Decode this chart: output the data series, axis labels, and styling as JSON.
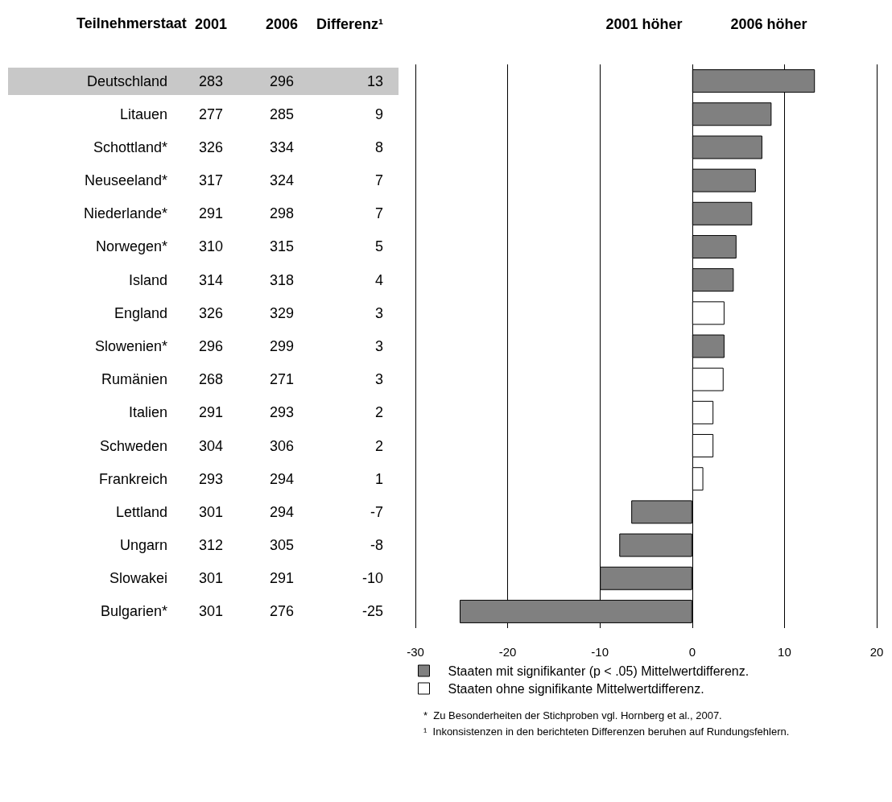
{
  "chart_data": [
    {
      "type": "other",
      "ylabel": "Teilnehmerstaat",
      "categories": [
        "Deutschland",
        "Litauen",
        "Schottland*",
        "Neuseeland*",
        "Niederlande*",
        "Norwegen*",
        "Island",
        "England",
        "Slowenien*",
        "Rumänien",
        "Italien",
        "Schweden",
        "Frankreich",
        "Lettland",
        "Ungarn",
        "Slowakei",
        "Bulgarien*"
      ],
      "data_labels": true,
      "series": [
        {
          "name": "2001",
          "values": [
            283,
            277,
            326,
            317,
            291,
            310,
            314,
            326,
            296,
            268,
            291,
            304,
            293,
            301,
            312,
            301,
            301
          ]
        },
        {
          "name": "2006",
          "values": [
            296,
            285,
            334,
            324,
            298,
            315,
            318,
            329,
            299,
            271,
            293,
            306,
            294,
            294,
            305,
            291,
            276
          ]
        },
        {
          "name": "Differenz¹",
          "values": [
            13,
            9,
            8,
            7,
            7,
            5,
            4,
            3,
            3,
            3,
            2,
            2,
            1,
            -7,
            -8,
            -10,
            -25
          ]
        }
      ]
    },
    {
      "type": "bar",
      "orientation": "horizontal",
      "categories": [
        null,
        null,
        null,
        null,
        null,
        null,
        null,
        null,
        null,
        null,
        null,
        null,
        null,
        null,
        null,
        null,
        null
      ],
      "xlim": [
        -30,
        20
      ],
      "xticks": [
        -30,
        -20,
        -10,
        0,
        10,
        20
      ],
      "grid": "x",
      "legend": "bottom",
      "annotations": [
        "2001 höher",
        "2006 höher",
        "*  Zu Besonderheiten der Stichproben vgl. Hornberg et al., 2007.",
        "¹  Inkonsistenzen in den berichteten Differenzen beruhen auf Rundungsfehlern."
      ],
      "series": [
        {
          "name": "Staaten mit signifikanter (p < .05) Mittelwertdifferenz.",
          "color": "#808080",
          "values": [
            13.3,
            8.6,
            7.6,
            6.9,
            6.5,
            4.8,
            4.5,
            null,
            3.5,
            null,
            null,
            null,
            null,
            -6.6,
            -7.9,
            -10,
            -25.2
          ]
        },
        {
          "name": "Staaten ohne signifikante Mittelwertdifferenz.",
          "color": "#ffffff",
          "values": [
            null,
            null,
            null,
            null,
            null,
            null,
            null,
            3.5,
            null,
            3.4,
            2.3,
            2.3,
            1.2,
            null,
            null,
            null,
            null
          ]
        }
      ]
    }
  ]
}
